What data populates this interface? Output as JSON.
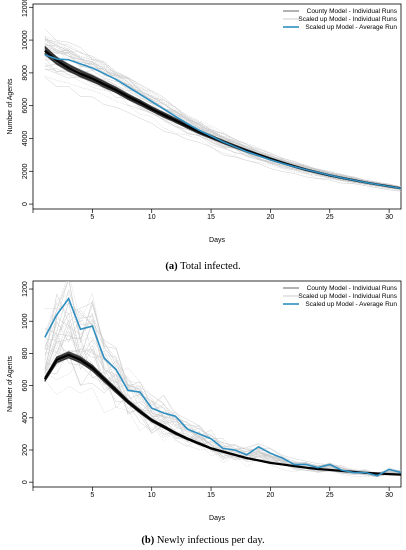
{
  "chart_data": [
    {
      "type": "line",
      "panel": "a",
      "caption_letter": "(a)",
      "caption_text": "Total infected.",
      "xlabel": "Days",
      "ylabel": "Number of Agents",
      "xlim": [
        0,
        31
      ],
      "ylim": [
        -300,
        12200
      ],
      "xticks": [
        0,
        5,
        10,
        15,
        20,
        25,
        30
      ],
      "yticks": [
        0,
        2000,
        4000,
        6000,
        8000,
        10000,
        12000
      ],
      "legend_position": "top-right",
      "legend": [
        {
          "label": "County Model - Individual Runs",
          "color": "#555555"
        },
        {
          "label": "Scaled up Model - Individual Runs",
          "color": "#c8c8c8"
        },
        {
          "label": "Scaled up Model - Average Run",
          "color": "#2e8fc0"
        }
      ],
      "series": [
        {
          "name": "County Model - Individual Runs",
          "color": "#000000",
          "x": [
            1,
            2,
            3,
            4,
            5,
            6,
            7,
            8,
            9,
            10,
            11,
            12,
            13,
            14,
            15,
            16,
            17,
            18,
            19,
            20,
            21,
            22,
            23,
            24,
            25,
            26,
            27,
            28,
            29,
            30,
            31
          ],
          "values": [
            9350,
            8750,
            8300,
            7950,
            7650,
            7300,
            6950,
            6550,
            6200,
            5800,
            5450,
            5100,
            4750,
            4400,
            4100,
            3800,
            3520,
            3250,
            3000,
            2750,
            2520,
            2300,
            2100,
            1920,
            1750,
            1600,
            1460,
            1320,
            1200,
            1080,
            960
          ]
        },
        {
          "name": "Scaled up Model - Average Run",
          "color": "#2e8fc0",
          "x": [
            1,
            2,
            3,
            4,
            5,
            6,
            7,
            8,
            9,
            10,
            11,
            12,
            13,
            14,
            15,
            16,
            17,
            18,
            19,
            20,
            21,
            22,
            23,
            24,
            25,
            26,
            27,
            28,
            29,
            30,
            31
          ],
          "values": [
            9100,
            8850,
            8800,
            8550,
            8300,
            7950,
            7600,
            7150,
            6700,
            6250,
            5800,
            5350,
            4900,
            4500,
            4150,
            3800,
            3500,
            3200,
            2950,
            2700,
            2480,
            2280,
            2100,
            1930,
            1760,
            1600,
            1460,
            1320,
            1200,
            1080,
            950
          ]
        }
      ]
    },
    {
      "type": "line",
      "panel": "b",
      "caption_letter": "(b)",
      "caption_text": "Newly infectious per day.",
      "xlabel": "Days",
      "ylabel": "Number of Agents",
      "xlim": [
        0,
        31
      ],
      "ylim": [
        -30,
        1250
      ],
      "xticks": [
        0,
        5,
        10,
        15,
        20,
        25,
        30
      ],
      "yticks": [
        0,
        200,
        400,
        600,
        800,
        1000,
        1200
      ],
      "legend_position": "top-right",
      "legend": [
        {
          "label": "County Model - Individual Runs",
          "color": "#555555"
        },
        {
          "label": "Scaled up Model - Individual Runs",
          "color": "#c8c8c8"
        },
        {
          "label": "Scaled up Model - Average Run",
          "color": "#2e8fc0"
        }
      ],
      "series": [
        {
          "name": "County Model - Individual Runs",
          "color": "#000000",
          "x": [
            1,
            2,
            3,
            4,
            5,
            6,
            7,
            8,
            9,
            10,
            11,
            12,
            13,
            14,
            15,
            16,
            17,
            18,
            19,
            20,
            21,
            22,
            23,
            24,
            25,
            26,
            27,
            28,
            29,
            30,
            31
          ],
          "values": [
            640,
            760,
            790,
            760,
            710,
            640,
            570,
            500,
            440,
            385,
            345,
            305,
            270,
            240,
            210,
            190,
            170,
            150,
            135,
            120,
            110,
            100,
            90,
            82,
            76,
            70,
            64,
            58,
            54,
            50,
            47
          ]
        },
        {
          "name": "Scaled up Model - Average Run",
          "color": "#2e8fc0",
          "x": [
            1,
            2,
            3,
            4,
            5,
            6,
            7,
            8,
            9,
            10,
            11,
            12,
            13,
            14,
            15,
            16,
            17,
            18,
            19,
            20,
            21,
            22,
            23,
            24,
            25,
            26,
            27,
            28,
            29,
            30,
            31
          ],
          "values": [
            900,
            1040,
            1140,
            950,
            970,
            770,
            700,
            570,
            560,
            460,
            430,
            410,
            330,
            300,
            270,
            210,
            200,
            170,
            220,
            180,
            150,
            110,
            110,
            90,
            110,
            75,
            60,
            60,
            40,
            80,
            60
          ]
        }
      ]
    }
  ]
}
